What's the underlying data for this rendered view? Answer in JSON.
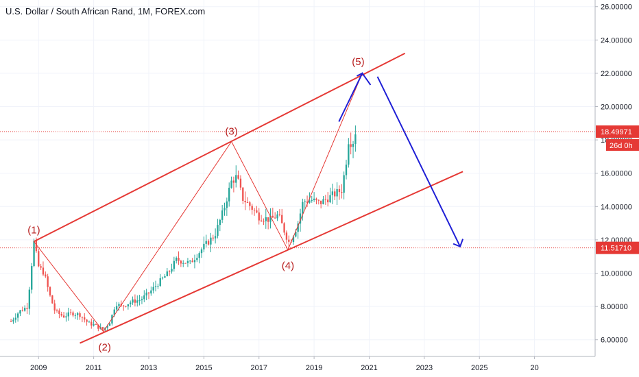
{
  "chart_data": {
    "type": "candlestick",
    "title": "U.S. Dollar / South African Rand, 1M, FOREX.com",
    "x_ticks": [
      "2009",
      "2011",
      "2013",
      "2015",
      "2017",
      "2019",
      "2021",
      "2023",
      "2025",
      "20"
    ],
    "y_ticks": [
      "6.00000",
      "8.00000",
      "10.00000",
      "12.00000",
      "14.00000",
      "16.00000",
      "18.00000",
      "20.00000",
      "22.00000",
      "24.00000",
      "26.00000"
    ],
    "ylim": [
      5.0,
      26.4
    ],
    "xlim": [
      2007.6,
      2029.2
    ],
    "price_points": [
      [
        2008.0,
        7.1
      ],
      [
        2008.3,
        7.7
      ],
      [
        2008.6,
        8.0
      ],
      [
        2008.83,
        11.9
      ],
      [
        2009.0,
        10.4
      ],
      [
        2009.2,
        10.0
      ],
      [
        2009.4,
        8.7
      ],
      [
        2009.6,
        7.7
      ],
      [
        2009.9,
        7.4
      ],
      [
        2010.2,
        7.6
      ],
      [
        2010.5,
        7.5
      ],
      [
        2010.8,
        7.0
      ],
      [
        2011.0,
        6.9
      ],
      [
        2011.35,
        6.6
      ],
      [
        2011.6,
        7.1
      ],
      [
        2011.8,
        8.2
      ],
      [
        2012.0,
        8.0
      ],
      [
        2012.4,
        8.3
      ],
      [
        2012.7,
        8.4
      ],
      [
        2013.0,
        8.8
      ],
      [
        2013.4,
        9.5
      ],
      [
        2013.7,
        10.0
      ],
      [
        2014.0,
        10.8
      ],
      [
        2014.5,
        10.6
      ],
      [
        2015.0,
        11.6
      ],
      [
        2015.4,
        12.3
      ],
      [
        2015.7,
        13.7
      ],
      [
        2016.0,
        15.5
      ],
      [
        2016.2,
        15.8
      ],
      [
        2016.4,
        14.5
      ],
      [
        2016.7,
        14.0
      ],
      [
        2017.0,
        13.4
      ],
      [
        2017.4,
        13.2
      ],
      [
        2017.7,
        13.5
      ],
      [
        2017.95,
        12.4
      ],
      [
        2018.1,
        11.8
      ],
      [
        2018.4,
        12.9
      ],
      [
        2018.6,
        14.3
      ],
      [
        2018.9,
        14.4
      ],
      [
        2019.2,
        14.2
      ],
      [
        2019.5,
        14.5
      ],
      [
        2019.8,
        14.8
      ],
      [
        2020.0,
        15.0
      ],
      [
        2020.15,
        16.5
      ],
      [
        2020.25,
        18.0
      ],
      [
        2020.4,
        17.8
      ],
      [
        2020.5,
        18.5
      ]
    ],
    "wave_points": [
      {
        "label": "(1)",
        "x": 2008.83,
        "y": 11.9
      },
      {
        "label": "(2)",
        "x": 2011.35,
        "y": 6.5
      },
      {
        "label": "(3)",
        "x": 2016.0,
        "y": 17.9
      },
      {
        "label": "(4)",
        "x": 2018.05,
        "y": 11.4
      },
      {
        "label": "(5)",
        "x": 2020.75,
        "y": 22.0
      }
    ],
    "channel_upper": [
      [
        2008.83,
        11.9
      ],
      [
        2022.3,
        23.2
      ]
    ],
    "channel_lower": [
      [
        2010.5,
        5.8
      ],
      [
        2024.4,
        16.1
      ]
    ],
    "forecast_path": [
      [
        2019.9,
        19.1
      ],
      [
        2020.75,
        22.0
      ],
      [
        2021.05,
        21.3
      ]
    ],
    "forecast_down": [
      [
        2021.3,
        21.8
      ],
      [
        2024.3,
        11.6
      ]
    ],
    "h_lines": [
      18.49971,
      11.5171
    ],
    "current_price_label": "18.49971",
    "countdown_label": "26d 0h",
    "support_label": "11.51710",
    "colors": {
      "up": "#26a69a",
      "down": "#ef5350",
      "channel": "#e53935",
      "forecast": "#1f1fd6",
      "badge": "#e53935",
      "wave_label": "#b71c1c"
    }
  }
}
